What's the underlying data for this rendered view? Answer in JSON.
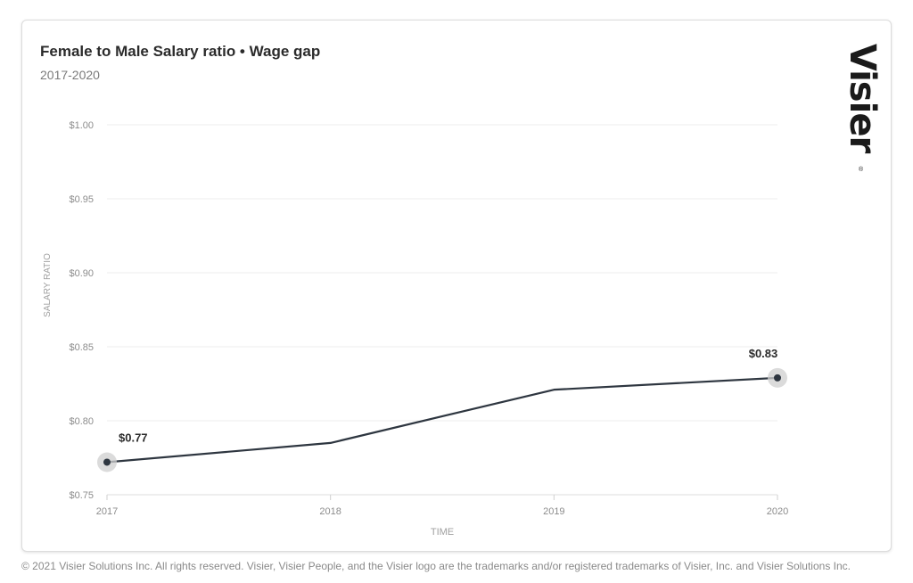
{
  "card": {
    "title": "Female to Male Salary ratio • Wage gap",
    "subtitle": "2017-2020",
    "logo_text": "Visier",
    "logo_mark": "®"
  },
  "footer": {
    "text": "© 2021 Visier Solutions Inc. All rights reserved. Visier, Visier People, and the Visier logo are the trademarks and/or registered trademarks of Visier, Inc. and Visier Solutions Inc."
  },
  "colors": {
    "line": "#2e3640",
    "grid": "#ececec",
    "axis_text": "#8c8c8c",
    "marker_halo": "#cfcfcf"
  },
  "chart_data": {
    "type": "line",
    "title": "Female to Male Salary ratio • Wage gap",
    "subtitle": "2017-2020",
    "xlabel": "TIME",
    "ylabel": "SALARY RATIO",
    "x": [
      "2017",
      "2018",
      "2019",
      "2020"
    ],
    "series": [
      {
        "values": [
          0.772,
          0.785,
          0.821,
          0.829
        ]
      }
    ],
    "ylim": [
      0.75,
      1.0
    ],
    "yticks": [
      0.75,
      0.8,
      0.85,
      0.9,
      0.95,
      1.0
    ],
    "ytick_labels": [
      "$0.75",
      "$0.80",
      "$0.85",
      "$0.90",
      "$0.95",
      "$1.00"
    ],
    "annotations": [
      {
        "index": 0,
        "label": "$0.77"
      },
      {
        "index": 3,
        "label": "$0.83"
      }
    ],
    "grid": true
  }
}
